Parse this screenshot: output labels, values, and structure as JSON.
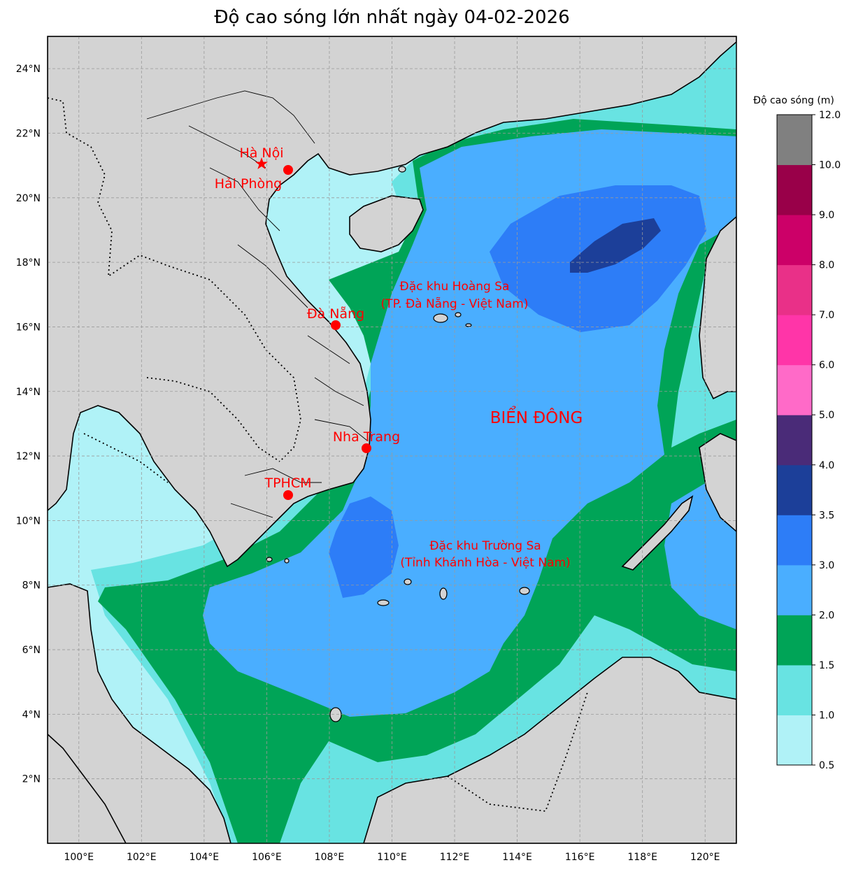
{
  "title": "Độ cao sóng lớn nhất ngày 04-02-2026",
  "colorbar": {
    "title": "Độ cao sóng (m)",
    "levels": [
      "0.5",
      "1.0",
      "1.5",
      "2.0",
      "3.0",
      "3.5",
      "4.0",
      "5.0",
      "6.0",
      "7.0",
      "8.0",
      "9.0",
      "10.0",
      "12.0"
    ],
    "colors": [
      "#b0f2f7",
      "#68e3e2",
      "#00a457",
      "#4aaeff",
      "#2d7df7",
      "#1c3f99",
      "#4a2b78",
      "#ff6ac8",
      "#ff35a8",
      "#e93088",
      "#cc0068",
      "#990049",
      "#808080"
    ]
  },
  "axes": {
    "lon_labels": [
      "100°E",
      "102°E",
      "104°E",
      "106°E",
      "108°E",
      "110°E",
      "112°E",
      "114°E",
      "116°E",
      "118°E",
      "120°E"
    ],
    "lat_labels": [
      "2°N",
      "4°N",
      "6°N",
      "8°N",
      "10°N",
      "12°N",
      "14°N",
      "16°N",
      "18°N",
      "20°N",
      "22°N",
      "24°N"
    ]
  },
  "cities": [
    {
      "name": "Hà Nội",
      "marker": "star",
      "lon": 105.85,
      "lat": 21.03
    },
    {
      "name": "Hải Phòng",
      "marker": "circle",
      "lon": 106.68,
      "lat": 20.86
    },
    {
      "name": "Đà Nẵng",
      "marker": "circle",
      "lon": 108.22,
      "lat": 16.07
    },
    {
      "name": "Nha Trang",
      "marker": "circle",
      "lon": 109.19,
      "lat": 12.24
    },
    {
      "name": "TPHCM",
      "marker": "circle",
      "lon": 106.66,
      "lat": 10.78
    }
  ],
  "regions": {
    "hoang_sa_line1": "Đặc khu Hoàng Sa",
    "hoang_sa_line2": "(TP. Đà Nẵng - Việt Nam)",
    "truong_sa_line1": "Đặc khu Trường Sa",
    "truong_sa_line2": "(Tỉnh Khánh Hòa - Việt Nam)",
    "sea_name": "BIỂN ĐÔNG"
  },
  "map_extent": {
    "lon": [
      99,
      121
    ],
    "lat": [
      0,
      25
    ]
  },
  "colors": {
    "land": "#d3d3d3",
    "label": "#ff0000"
  }
}
